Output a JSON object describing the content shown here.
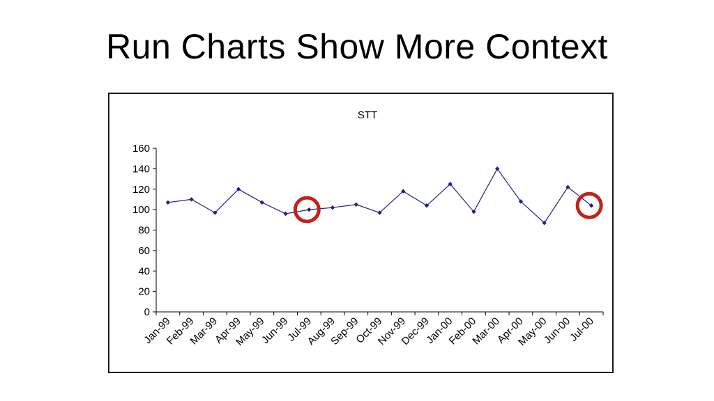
{
  "slide": {
    "title": "Run Charts Show More Context"
  },
  "chart_data": {
    "type": "line",
    "title": "STT",
    "xlabel": "",
    "ylabel": "",
    "ylim": [
      0,
      160
    ],
    "yticks": [
      0,
      20,
      40,
      60,
      80,
      100,
      120,
      140,
      160
    ],
    "grid": false,
    "legend": "none",
    "categories": [
      "Jan-99",
      "Feb-99",
      "Mar-99",
      "Apr-99",
      "May-99",
      "Jun-99",
      "Jul-99",
      "Aug-99",
      "Sep-99",
      "Oct-99",
      "Nov-99",
      "Dec-99",
      "Jan-00",
      "Feb-00",
      "Mar-00",
      "Apr-00",
      "May-00",
      "Jun-00",
      "Jul-00"
    ],
    "series": [
      {
        "values": [
          107,
          110,
          97,
          120,
          107,
          96,
          100,
          102,
          105,
          97,
          118,
          104,
          125,
          98,
          140,
          108,
          87,
          122,
          104
        ],
        "color": "#1f1f8f"
      }
    ],
    "highlighted_points": [
      "Jul-99",
      "Jul-00"
    ],
    "highlight_color": "#c0231a"
  }
}
